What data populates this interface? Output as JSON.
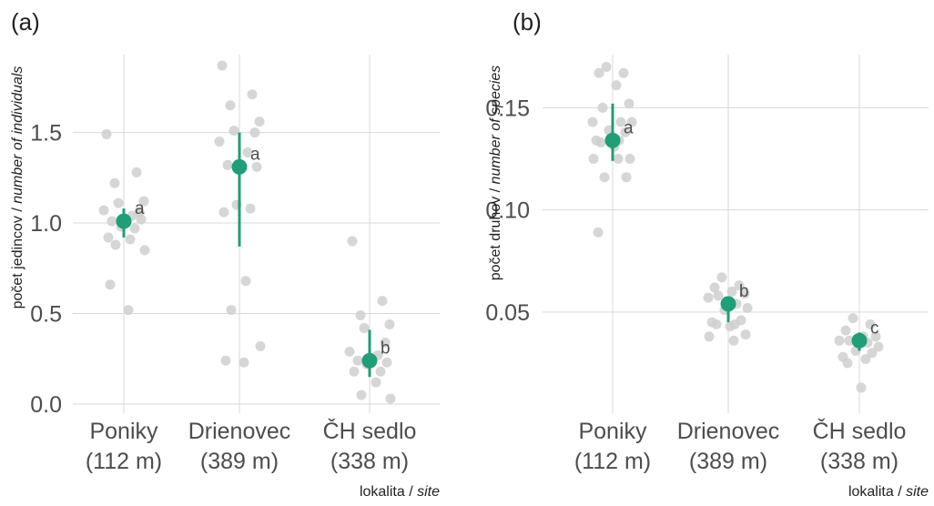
{
  "colors": {
    "accent": "#1f9e78",
    "points": "#cfcfcf",
    "grid": "#d9d9d9",
    "text": "#4d4d4d"
  },
  "chart_data": [
    {
      "type": "scatter",
      "panel_label": "(a)",
      "ylabel_main": "počet jedincov / ",
      "ylabel_italic": "number of individuals",
      "xlabel_main": "lokalita / ",
      "xlabel_italic": "site",
      "ylim": [
        -0.05,
        1.93
      ],
      "yticks": [
        0.0,
        0.5,
        1.0,
        1.5
      ],
      "ytick_labels": [
        "0.0",
        "0.5",
        "1.0",
        "1.5"
      ],
      "categories": [
        {
          "line1": "Poniky",
          "line2": "(112 m)"
        },
        {
          "line1": "Drienovec",
          "line2": "(389 m)"
        },
        {
          "line1": "ČH sedlo",
          "line2": "(338 m)"
        }
      ],
      "means": [
        1.01,
        1.31,
        0.24
      ],
      "ci": [
        [
          0.92,
          1.08
        ],
        [
          0.87,
          1.5
        ],
        [
          0.15,
          0.41
        ]
      ],
      "letters": [
        "a",
        "a",
        "b"
      ],
      "points": [
        [
          1.49,
          1.28,
          1.22,
          1.12,
          1.11,
          1.06,
          1.07,
          1.04,
          1.01,
          1.02,
          0.98,
          0.97,
          0.92,
          0.91,
          0.88,
          0.85,
          0.66,
          0.52
        ],
        [
          1.87,
          1.71,
          1.65,
          1.56,
          1.51,
          1.5,
          1.45,
          1.39,
          1.32,
          1.31,
          1.1,
          1.08,
          1.06,
          0.68,
          0.52,
          0.32,
          0.24,
          0.23
        ],
        [
          0.9,
          0.57,
          0.49,
          0.44,
          0.42,
          0.34,
          0.29,
          0.27,
          0.24,
          0.23,
          0.22,
          0.18,
          0.18,
          0.12,
          0.05,
          0.03
        ]
      ]
    },
    {
      "type": "scatter",
      "panel_label": "(b)",
      "ylabel_main": "počet druhov / ",
      "ylabel_italic": "number of species",
      "xlabel_main": "lokalita / ",
      "xlabel_italic": "site",
      "ylim": [
        0.0005,
        0.176
      ],
      "yticks": [
        0.05,
        0.1,
        0.15
      ],
      "ytick_labels": [
        "0.05",
        "0.10",
        "0.15"
      ],
      "categories": [
        {
          "line1": "Poniky",
          "line2": "(112 m)"
        },
        {
          "line1": "Drienovec",
          "line2": "(389 m)"
        },
        {
          "line1": "ČH sedlo",
          "line2": "(338 m)"
        }
      ],
      "means": [
        0.134,
        0.054,
        0.036
      ],
      "ci": [
        [
          0.124,
          0.152
        ],
        [
          0.045,
          0.057
        ],
        [
          0.031,
          0.04
        ]
      ],
      "letters": [
        "a",
        "b",
        "c"
      ],
      "points": [
        [
          0.17,
          0.167,
          0.167,
          0.161,
          0.152,
          0.15,
          0.143,
          0.143,
          0.143,
          0.139,
          0.138,
          0.134,
          0.134,
          0.133,
          0.131,
          0.125,
          0.125,
          0.125,
          0.116,
          0.116,
          0.089
        ],
        [
          0.067,
          0.063,
          0.062,
          0.06,
          0.059,
          0.058,
          0.057,
          0.054,
          0.052,
          0.051,
          0.046,
          0.045,
          0.044,
          0.044,
          0.043,
          0.039,
          0.038,
          0.036
        ],
        [
          0.047,
          0.044,
          0.041,
          0.038,
          0.038,
          0.036,
          0.036,
          0.035,
          0.033,
          0.031,
          0.03,
          0.028,
          0.027,
          0.025,
          0.013
        ]
      ]
    }
  ]
}
